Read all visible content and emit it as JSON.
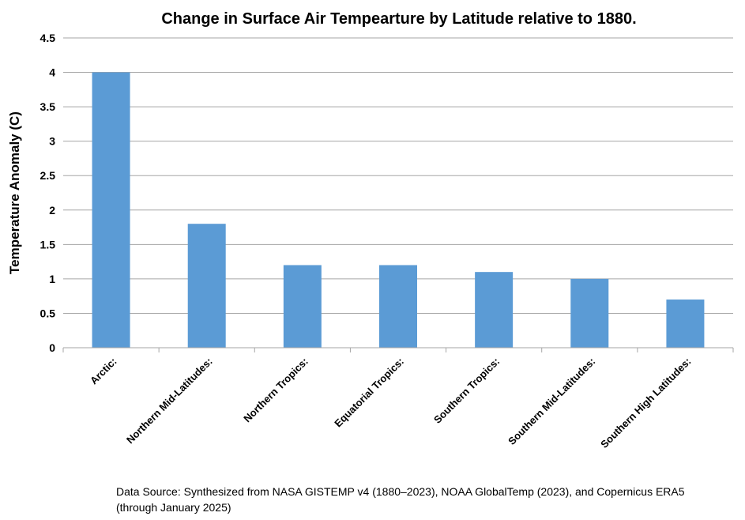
{
  "chart_data": {
    "type": "bar",
    "title": "Change in Surface Air Tempearture by Latitude relative to 1880.",
    "xlabel": "",
    "ylabel": "Temperature Anomaly (C)",
    "categories": [
      "Arctic:",
      "Northern Mid-Latitudes:",
      "Northern Tropics:",
      "Equatorial Tropics:",
      "Southern Tropics:",
      "Southern Mid-Latitudes:",
      "Southern High Latitudes:"
    ],
    "values": [
      4,
      1.8,
      1.2,
      1.2,
      1.1,
      1.0,
      0.7
    ],
    "ylim": [
      0,
      4.5
    ],
    "yticks": [
      "0",
      "0.5",
      "1",
      "1.5",
      "2",
      "2.5",
      "3",
      "3.5",
      "4",
      "4.5"
    ],
    "grid": true,
    "legend": "none",
    "bar_color": "#5B9BD5",
    "grid_color": "#A6A6A6"
  },
  "source_note": "Data Source: Synthesized from NASA GISTEMP v4 (1880–2023), NOAA GlobalTemp (2023), and Copernicus ERA5 (through January 2025)"
}
